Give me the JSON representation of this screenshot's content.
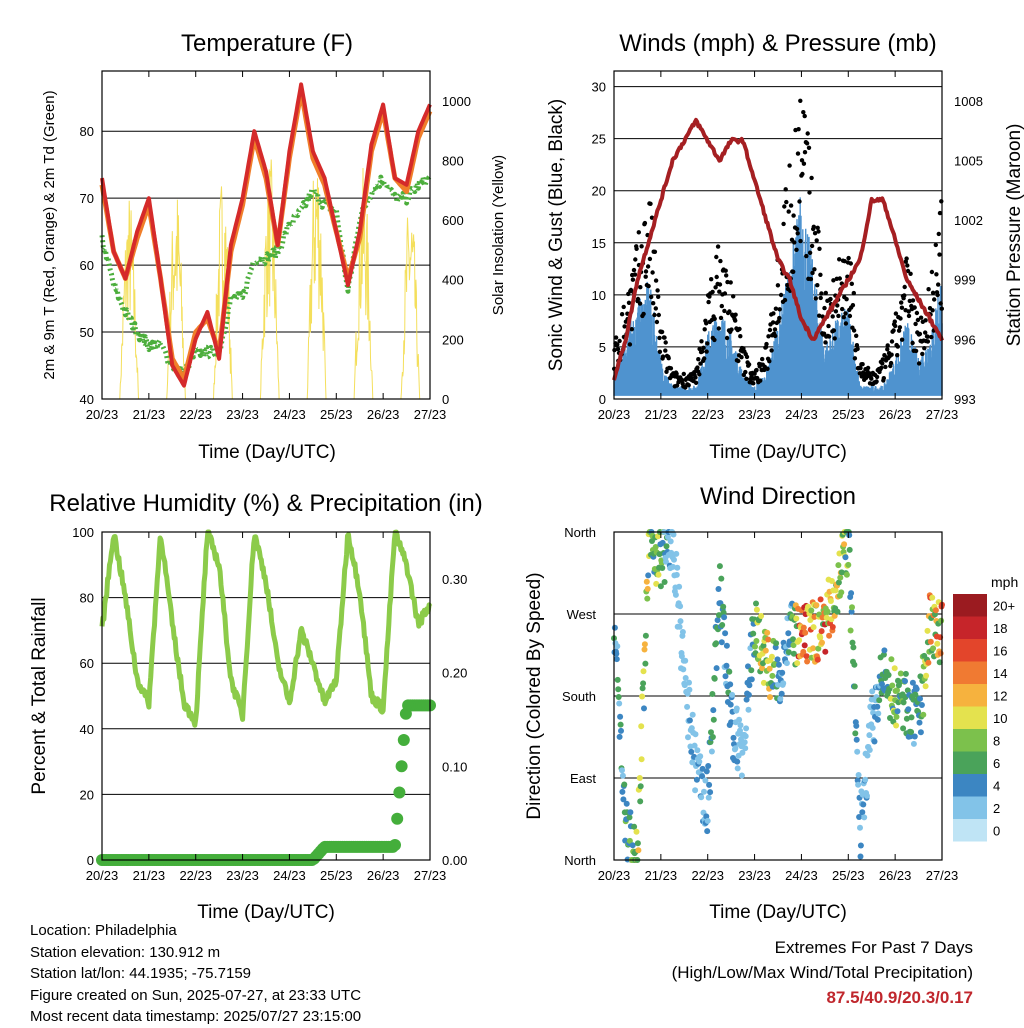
{
  "days": [
    "20/23",
    "21/23",
    "22/23",
    "23/23",
    "24/23",
    "25/23",
    "26/23",
    "27/23"
  ],
  "time_label": "Time (Day/UTC)",
  "temperature": {
    "title": "Temperature (F)",
    "ylabel_left": "2m & 9m T (Red, Orange) & 2m Td (Green)",
    "ylabel_right": "Solar Insolation (Yellow)",
    "left_ticks": [
      "40",
      "50",
      "60",
      "70",
      "80"
    ],
    "right_ticks": [
      "0",
      "200",
      "400",
      "600",
      "800",
      "1000"
    ]
  },
  "winds": {
    "title": "Winds (mph) & Pressure (mb)",
    "ylabel_left": "Sonic Wind & Gust (Blue, Black)",
    "ylabel_right": "Station Pressure (Maroon)",
    "left_ticks": [
      "0",
      "5",
      "10",
      "15",
      "20",
      "25",
      "30"
    ],
    "right_ticks": [
      "993",
      "996",
      "999",
      "1002",
      "1005",
      "1008"
    ]
  },
  "humidity": {
    "title": "Relative Humidity (%) & Precipitation (in)",
    "ylabel_left": "Percent & Total Rainfall",
    "left_ticks": [
      "0",
      "20",
      "40",
      "60",
      "80",
      "100"
    ],
    "right_ticks": [
      "0.00",
      "0.10",
      "0.20",
      "0.30"
    ]
  },
  "direction": {
    "title": "Wind Direction",
    "ylabel_left": "Direction (Colored By Speed)",
    "dir_labels": [
      "North",
      "East",
      "South",
      "West",
      "North"
    ],
    "legend_title": "mph",
    "legend_labels": [
      "20+",
      "18",
      "16",
      "14",
      "12",
      "10",
      "8",
      "6",
      "4",
      "2",
      "0"
    ]
  },
  "colors": {
    "temp2m": "#d52a2a",
    "temp9m": "#f07e2a",
    "dewpoint": "#4cae3c",
    "solar": "#f3dc4a",
    "wind": "#4f93cf",
    "gust": "#000000",
    "pressure": "#a51f22",
    "rh": "#8ccb4a",
    "precip": "#44ae3b",
    "extremes": "#c0272d",
    "speed_scale": [
      "#bfe4f5",
      "#82c3e8",
      "#3c86c2",
      "#4aa35a",
      "#7cc14c",
      "#e4e24e",
      "#f6b23e",
      "#f07a32",
      "#e3452b",
      "#c6252a",
      "#9b1b20"
    ]
  },
  "info": {
    "location": "Location: Philadelphia",
    "elevation": "Station elevation: 130.912 m",
    "latlon": "Station lat/lon: 44.1935; -75.7159",
    "created": "Figure created on Sun, 2025-07-27, at 23:33 UTC",
    "recent": "Most recent data timestamp: 2025/07/27 23:15:00"
  },
  "extremes": {
    "line1": "Extremes For Past 7 Days",
    "line2": "(High/Low/Max Wind/Total Precipitation)",
    "values": "87.5/40.9/20.3/0.17"
  },
  "chart_data": [
    {
      "type": "line",
      "title": "Temperature (F)",
      "xlabel": "Time (Day/UTC)",
      "ylabel": "2m & 9m T (Red, Orange) & 2m Td (Green)",
      "ylim": [
        40,
        89
      ],
      "y2label": "Solar Insolation (Yellow)",
      "y2lim": [
        0,
        1100
      ],
      "x": [
        0,
        0.25,
        0.5,
        0.75,
        1,
        1.25,
        1.5,
        1.75,
        2,
        2.25,
        2.5,
        2.75,
        3,
        3.25,
        3.5,
        3.75,
        4,
        4.25,
        4.5,
        4.75,
        5,
        5.25,
        5.5,
        5.75,
        6,
        6.25,
        6.5,
        6.75,
        7
      ],
      "series": [
        {
          "name": "2m T",
          "values": [
            73,
            62,
            58,
            65,
            70,
            58,
            45,
            42,
            49,
            53,
            46,
            63,
            70,
            80,
            74,
            63,
            77,
            87,
            77,
            73,
            65,
            57,
            65,
            78,
            84,
            73,
            72,
            80,
            84
          ]
        },
        {
          "name": "9m T",
          "values": [
            72,
            62,
            58,
            64,
            69,
            58,
            46,
            43,
            50,
            52,
            47,
            62,
            69,
            79,
            73,
            63,
            76,
            86,
            76,
            72,
            65,
            58,
            64,
            77,
            83,
            73,
            71,
            79,
            83
          ]
        },
        {
          "name": "2m Td",
          "values": [
            64,
            57,
            53,
            50,
            48,
            48,
            45,
            44,
            47,
            47,
            47,
            55,
            55,
            61,
            61,
            62,
            66,
            68,
            71,
            69,
            68,
            56,
            67,
            71,
            73,
            70,
            70,
            72,
            73
          ]
        },
        {
          "name": "Solar",
          "axis": "y2",
          "values": [
            0,
            0,
            400,
            950,
            0,
            0,
            500,
            1080,
            0,
            0,
            700,
            900,
            0,
            0,
            750,
            950,
            0,
            0,
            850,
            950,
            0,
            0,
            700,
            900,
            0,
            0,
            600,
            800,
            0
          ]
        }
      ]
    },
    {
      "type": "scatter",
      "title": "Winds (mph) & Pressure (mb)",
      "xlabel": "Time (Day/UTC)",
      "ylabel": "Sonic Wind & Gust (Blue, Black)",
      "ylim": [
        0,
        31.5
      ],
      "y2label": "Station Pressure (Maroon)",
      "y2lim": [
        993,
        1009.5
      ],
      "x": [
        0,
        0.25,
        0.5,
        0.75,
        1,
        1.25,
        1.5,
        1.75,
        2,
        2.25,
        2.5,
        2.75,
        3,
        3.25,
        3.5,
        3.75,
        4,
        4.25,
        4.5,
        4.75,
        5,
        5.25,
        5.5,
        5.75,
        6,
        6.25,
        6.5,
        6.75,
        7
      ],
      "series": [
        {
          "name": "Sonic Wind",
          "values": [
            2,
            5,
            7,
            9,
            3,
            1,
            1,
            1,
            5,
            7,
            5,
            2,
            1,
            2,
            6,
            10,
            16,
            10,
            4,
            6,
            7,
            1,
            1,
            1,
            3,
            6,
            3,
            5,
            10
          ]
        },
        {
          "name": "Gust",
          "values": [
            4,
            8,
            12,
            16,
            6,
            2,
            2,
            2,
            8,
            12,
            9,
            4,
            2,
            4,
            12,
            18,
            25,
            16,
            8,
            11,
            12,
            3,
            2,
            3,
            6,
            11,
            6,
            9,
            15
          ]
        },
        {
          "name": "Station Pressure",
          "axis": "y2",
          "values": [
            994,
            996,
            999,
            1001,
            1003,
            1005,
            1006,
            1007,
            1006,
            1005,
            1006,
            1006,
            1004,
            1002,
            1000,
            999,
            997,
            996,
            997,
            998,
            999,
            1000,
            1003,
            1003,
            1001,
            999,
            998,
            997,
            996
          ]
        }
      ]
    },
    {
      "type": "line",
      "title": "Relative Humidity (%) & Precipitation (in)",
      "xlabel": "Time (Day/UTC)",
      "ylabel": "Percent & Total Rainfall",
      "ylim": [
        0,
        100
      ],
      "y2lim": [
        0,
        0.35
      ],
      "x": [
        0,
        0.25,
        0.5,
        0.75,
        1,
        1.25,
        1.5,
        1.75,
        2,
        2.25,
        2.5,
        2.75,
        3,
        3.25,
        3.5,
        3.75,
        4,
        4.25,
        4.5,
        4.75,
        5,
        5.25,
        5.5,
        5.75,
        6,
        6.25,
        6.5,
        6.75,
        7
      ],
      "series": [
        {
          "name": "RH",
          "values": [
            70,
            100,
            80,
            55,
            48,
            100,
            72,
            48,
            42,
            100,
            90,
            55,
            44,
            100,
            85,
            60,
            48,
            70,
            60,
            48,
            55,
            100,
            82,
            50,
            46,
            100,
            90,
            72,
            78
          ]
        },
        {
          "name": "Precip",
          "axis": "y2",
          "values": [
            0,
            0,
            0,
            0,
            0,
            0,
            0,
            0,
            0,
            0,
            0,
            0,
            0,
            0,
            0,
            0,
            0,
            0,
            0,
            0.014,
            0.014,
            0.014,
            0.014,
            0.014,
            0.014,
            0.014,
            0.165,
            0.165,
            0.165
          ]
        }
      ]
    },
    {
      "type": "scatter",
      "title": "Wind Direction",
      "xlabel": "Time (Day/UTC)",
      "ylabel": "Direction (Colored By Speed)",
      "ylim": [
        0,
        360
      ],
      "x": [
        0,
        0.25,
        0.5,
        0.75,
        1,
        1.25,
        1.5,
        1.75,
        2,
        2.25,
        2.5,
        2.75,
        3,
        3.25,
        3.5,
        3.75,
        4,
        4.25,
        4.5,
        4.75,
        5,
        5.25,
        5.5,
        5.75,
        6,
        6.25,
        6.5,
        6.75,
        7
      ],
      "series": [
        {
          "name": "Direction",
          "values": [
            270,
            30,
            10,
            350,
            330,
            350,
            200,
            100,
            60,
            300,
            150,
            120,
            260,
            220,
            200,
            250,
            240,
            250,
            260,
            300,
            350,
            30,
            150,
            200,
            180,
            170,
            150,
            260,
            250
          ]
        },
        {
          "name": "Speed",
          "values": [
            4,
            6,
            9,
            9,
            7,
            2,
            2,
            3,
            4,
            6,
            4,
            2,
            6,
            12,
            4,
            4,
            16,
            13,
            14,
            12,
            8,
            3,
            2,
            6,
            8,
            6,
            5,
            12,
            12
          ]
        }
      ]
    }
  ]
}
